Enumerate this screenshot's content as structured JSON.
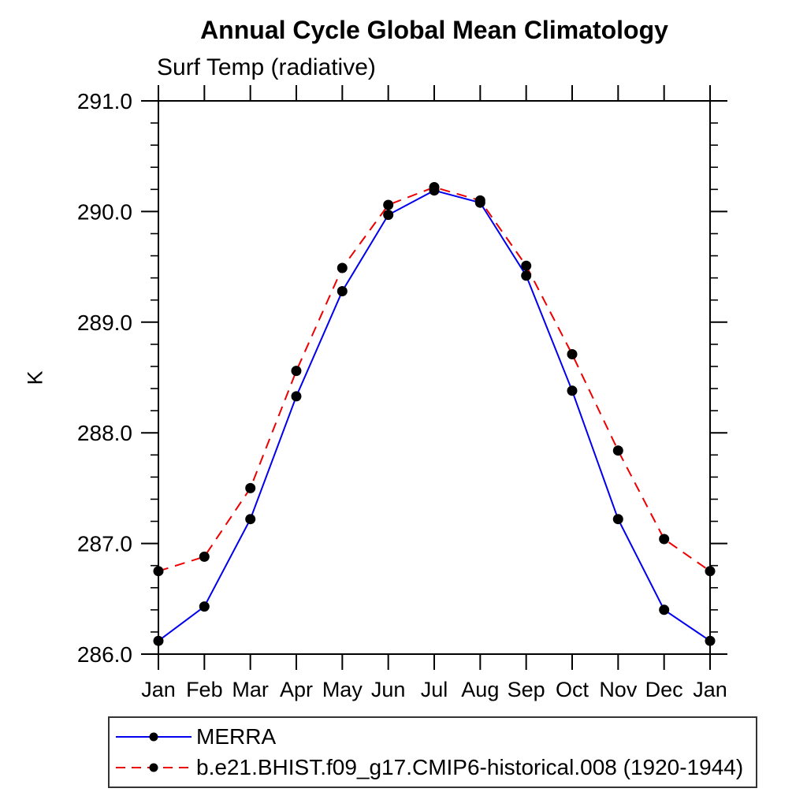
{
  "chart_data": {
    "type": "line",
    "title": "Annual Cycle Global Mean Climatology",
    "subtitle": "Surf Temp (radiative)",
    "xlabel": "",
    "ylabel": "K",
    "categories": [
      "Jan",
      "Feb",
      "Mar",
      "Apr",
      "May",
      "Jun",
      "Jul",
      "Aug",
      "Sep",
      "Oct",
      "Nov",
      "Dec",
      "Jan"
    ],
    "series": [
      {
        "name": "MERRA",
        "color": "#0000ee",
        "line_style": "solid",
        "marker": "filled-circle",
        "marker_color": "#000000",
        "values": [
          286.12,
          286.43,
          287.22,
          288.33,
          289.28,
          289.97,
          290.19,
          290.08,
          289.42,
          288.38,
          287.22,
          286.4,
          286.12
        ]
      },
      {
        "name": "b.e21.BHIST.f09_g17.CMIP6-historical.008 (1920-1944)",
        "color": "#ee0000",
        "line_style": "dashed",
        "marker": "filled-circle",
        "marker_color": "#000000",
        "values": [
          286.75,
          286.88,
          287.5,
          288.56,
          289.49,
          290.06,
          290.22,
          290.1,
          289.51,
          288.71,
          287.84,
          287.04,
          286.75
        ]
      }
    ],
    "ylim": [
      286.0,
      291.0
    ],
    "yticks": [
      "286.0",
      "287.0",
      "288.0",
      "289.0",
      "290.0",
      "291.0"
    ],
    "y_minor_tick_interval": 0.2,
    "grid": false,
    "legend_position": "bottom-left",
    "axis_color": "#000000"
  }
}
